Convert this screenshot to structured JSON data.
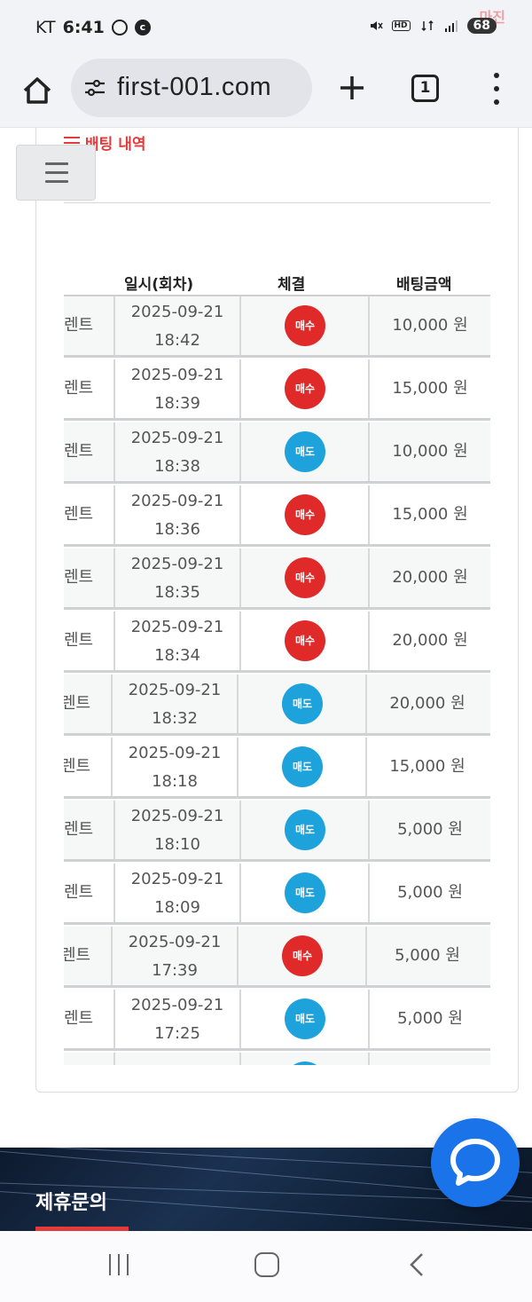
{
  "status_bar": {
    "carrier": "KT",
    "time": "6:41",
    "battery": "68",
    "watermark": "마진"
  },
  "browser": {
    "url": "first-001.com",
    "tab_count": "1"
  },
  "page": {
    "section_title": "배팅 내역",
    "table": {
      "headers": [
        "일시(회차)",
        "체결",
        "배팅금액"
      ],
      "rows": [
        {
          "name": "렌트",
          "date": "2025-09-21",
          "time": "18:42",
          "type": "매수",
          "kind": "buy",
          "amount": "10,000 원"
        },
        {
          "name": "렌트",
          "date": "2025-09-21",
          "time": "18:39",
          "type": "매수",
          "kind": "buy",
          "amount": "15,000 원"
        },
        {
          "name": "렌트",
          "date": "2025-09-21",
          "time": "18:38",
          "type": "매도",
          "kind": "sell",
          "amount": "10,000 원"
        },
        {
          "name": "렌트",
          "date": "2025-09-21",
          "time": "18:36",
          "type": "매수",
          "kind": "buy",
          "amount": "15,000 원"
        },
        {
          "name": "렌트",
          "date": "2025-09-21",
          "time": "18:35",
          "type": "매수",
          "kind": "buy",
          "amount": "20,000 원"
        },
        {
          "name": "렌트",
          "date": "2025-09-21",
          "time": "18:34",
          "type": "매수",
          "kind": "buy",
          "amount": "20,000 원"
        },
        {
          "name": "렌트",
          "date": "2025-09-21",
          "time": "18:32",
          "type": "매도",
          "kind": "sell",
          "amount": "20,000 원"
        },
        {
          "name": "렌트",
          "date": "2025-09-21",
          "time": "18:18",
          "type": "매도",
          "kind": "sell",
          "amount": "15,000 원"
        },
        {
          "name": "렌트",
          "date": "2025-09-21",
          "time": "18:10",
          "type": "매도",
          "kind": "sell",
          "amount": "5,000 원"
        },
        {
          "name": "렌트",
          "date": "2025-09-21",
          "time": "18:09",
          "type": "매도",
          "kind": "sell",
          "amount": "5,000 원"
        },
        {
          "name": "렌트",
          "date": "2025-09-21",
          "time": "17:39",
          "type": "매수",
          "kind": "buy",
          "amount": "5,000 원"
        },
        {
          "name": "렌트",
          "date": "2025-09-21",
          "time": "17:25",
          "type": "매도",
          "kind": "sell",
          "amount": "5,000 원"
        }
      ]
    }
  },
  "footer": {
    "title": "제휴문의"
  },
  "colors": {
    "accent": "#e23b3b",
    "buy": "#e02a2a",
    "sell": "#1ea2dc",
    "chat": "#1a73e8"
  }
}
